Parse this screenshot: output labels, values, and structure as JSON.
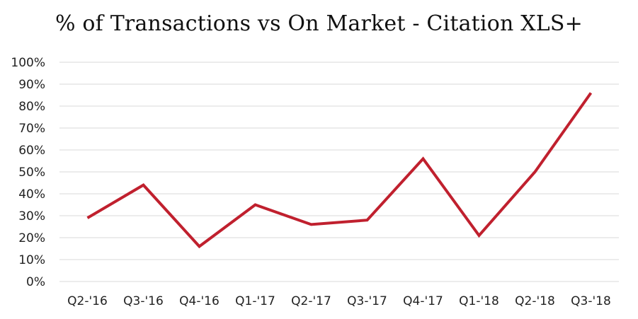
{
  "chart_data": {
    "type": "line",
    "title": "% of Transactions vs On Market - Citation XLS+",
    "xlabel": "",
    "ylabel": "",
    "categories": [
      "Q2-'16",
      "Q3-'16",
      "Q4-'16",
      "Q1-'17",
      "Q2-'17",
      "Q3-'17",
      "Q4-'17",
      "Q1-'18",
      "Q2-'18",
      "Q3-'18"
    ],
    "series": [
      {
        "values": [
          29,
          44,
          16,
          35,
          26,
          28,
          56,
          21,
          50,
          86
        ],
        "color": "#c0202e"
      }
    ],
    "ylim": [
      0,
      100
    ],
    "yticks": [
      "0%",
      "10%",
      "20%",
      "30%",
      "40%",
      "50%",
      "60%",
      "70%",
      "80%",
      "90%",
      "100%"
    ],
    "y_format": "percent",
    "grid": true,
    "legend": "none"
  }
}
